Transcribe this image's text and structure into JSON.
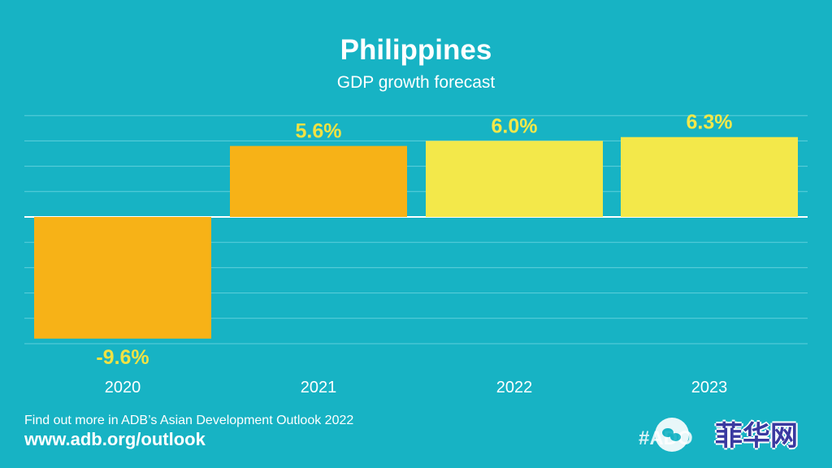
{
  "chart_data": {
    "type": "bar",
    "title": "Philippines",
    "subtitle": "GDP growth forecast",
    "categories": [
      "2020",
      "2021",
      "2022",
      "2023"
    ],
    "values": [
      -9.6,
      5.6,
      6.0,
      6.3
    ],
    "value_labels": [
      "-9.6%",
      "5.6%",
      "6.0%",
      "6.3%"
    ],
    "bar_colors": [
      "#f7b217",
      "#f7b217",
      "#f3e84a",
      "#f3e84a"
    ],
    "label_colors": [
      "#f0e243",
      "#f0e243",
      "#f3e84a",
      "#f3e84a"
    ],
    "ylim": [
      -10,
      8
    ],
    "grid": true
  },
  "footer": {
    "line1": "Find out more in ADB’s Asian Development Outlook 2022",
    "line2": "www.adb.org/outlook",
    "hashtag": "#ADO"
  },
  "watermark": {
    "icon": "wechat-icon",
    "text": "菲华网"
  },
  "colors": {
    "background": "#17b3c4",
    "gridline": "#5fcfdb"
  }
}
